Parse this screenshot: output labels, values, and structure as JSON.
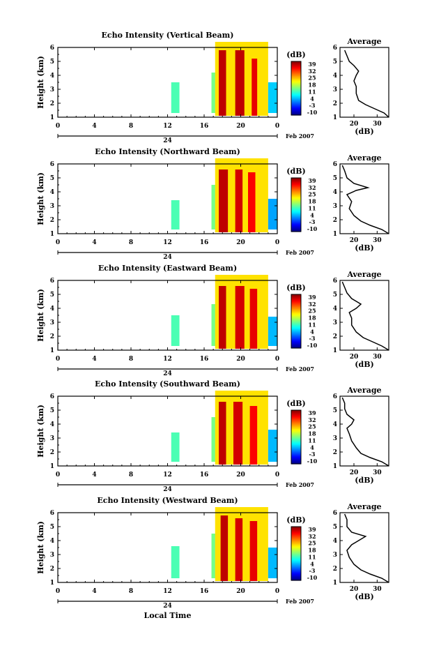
{
  "chart_data": [
    {
      "type": "heatmap",
      "title": "Echo Intensity (Vertical Beam)",
      "ylabel": "Height (km)",
      "xlim": [
        0,
        24
      ],
      "ylim": [
        1,
        6
      ],
      "x_ticks": [
        "0",
        "4",
        "8",
        "12",
        "16",
        "20",
        "0"
      ],
      "y_ticks": [
        "1",
        "2",
        "3",
        "4",
        "5",
        "6"
      ],
      "date_label": "24",
      "month_label": "Feb 2007",
      "colorbar": {
        "label": "(dB)",
        "ticks": [
          "39",
          "32",
          "25",
          "18",
          "11",
          "4",
          "-3",
          "-10"
        ],
        "range": [
          -10,
          39
        ]
      },
      "regions": [
        {
          "t": [
            12.4,
            13.3
          ],
          "h": [
            1.3,
            3.5
          ],
          "dB": 12
        },
        {
          "t": [
            16.8,
            18.2
          ],
          "h": [
            1.3,
            4.2
          ],
          "dB": 14
        },
        {
          "t": [
            17.2,
            23.0
          ],
          "h": [
            1.1,
            6.4
          ],
          "dB": 22
        },
        {
          "t": [
            23.0,
            24.0
          ],
          "h": [
            1.3,
            3.5
          ],
          "dB": 6
        }
      ],
      "bands": [
        {
          "t": [
            17.6,
            18.4
          ],
          "h": [
            1.1,
            5.8
          ],
          "dB": 36
        },
        {
          "t": [
            19.4,
            20.4
          ],
          "h": [
            1.1,
            5.8
          ],
          "dB": 36
        },
        {
          "t": [
            21.2,
            21.8
          ],
          "h": [
            1.1,
            5.2
          ],
          "dB": 34
        }
      ],
      "average": {
        "title": "Average",
        "xlabel": "(dB)",
        "xlim": [
          14,
          35
        ],
        "ylim": [
          1,
          6
        ],
        "x_ticks": [
          "20",
          "30"
        ],
        "y_ticks": [
          "1",
          "2",
          "3",
          "4",
          "5",
          "6"
        ],
        "profile": [
          [
            35,
            1.0
          ],
          [
            33,
            1.3
          ],
          [
            29,
            1.6
          ],
          [
            25,
            1.9
          ],
          [
            22,
            2.2
          ],
          [
            21,
            2.7
          ],
          [
            21,
            3.2
          ],
          [
            20,
            3.6
          ],
          [
            21,
            4.0
          ],
          [
            22,
            4.3
          ],
          [
            20,
            4.7
          ],
          [
            18,
            5.0
          ],
          [
            17,
            5.4
          ],
          [
            16,
            5.8
          ]
        ]
      }
    },
    {
      "type": "heatmap",
      "title": "Echo Intensity (Northward Beam)",
      "ylabel": "Height (km)",
      "xlim": [
        0,
        24
      ],
      "ylim": [
        1,
        6
      ],
      "x_ticks": [
        "0",
        "4",
        "8",
        "12",
        "16",
        "20",
        "0"
      ],
      "y_ticks": [
        "1",
        "2",
        "3",
        "4",
        "5",
        "6"
      ],
      "date_label": "24",
      "month_label": "Feb 2007",
      "colorbar": {
        "label": "(dB)",
        "ticks": [
          "39",
          "32",
          "25",
          "18",
          "11",
          "4",
          "-3",
          "-10"
        ],
        "range": [
          -10,
          39
        ]
      },
      "regions": [
        {
          "t": [
            12.4,
            13.3
          ],
          "h": [
            1.3,
            3.4
          ],
          "dB": 12
        },
        {
          "t": [
            16.8,
            18.2
          ],
          "h": [
            1.3,
            4.5
          ],
          "dB": 14
        },
        {
          "t": [
            17.2,
            23.0
          ],
          "h": [
            1.1,
            6.4
          ],
          "dB": 22
        },
        {
          "t": [
            23.0,
            24.0
          ],
          "h": [
            1.3,
            3.5
          ],
          "dB": 4
        }
      ],
      "bands": [
        {
          "t": [
            17.6,
            18.6
          ],
          "h": [
            1.1,
            5.6
          ],
          "dB": 36
        },
        {
          "t": [
            19.4,
            20.2
          ],
          "h": [
            1.1,
            5.6
          ],
          "dB": 35
        },
        {
          "t": [
            20.8,
            21.6
          ],
          "h": [
            1.1,
            5.4
          ],
          "dB": 33
        }
      ],
      "average": {
        "title": "Average",
        "xlabel": "(dB)",
        "xlim": [
          14,
          35
        ],
        "ylim": [
          1,
          6
        ],
        "x_ticks": [
          "20",
          "30"
        ],
        "y_ticks": [
          "1",
          "2",
          "3",
          "4",
          "5",
          "6"
        ],
        "profile": [
          [
            35,
            1.0
          ],
          [
            32,
            1.3
          ],
          [
            27,
            1.6
          ],
          [
            23,
            1.9
          ],
          [
            20,
            2.3
          ],
          [
            18,
            2.8
          ],
          [
            19,
            3.3
          ],
          [
            17,
            3.8
          ],
          [
            21,
            4.1
          ],
          [
            26,
            4.3
          ],
          [
            20,
            4.6
          ],
          [
            17,
            5.0
          ],
          [
            16,
            5.5
          ],
          [
            15,
            5.9
          ]
        ]
      }
    },
    {
      "type": "heatmap",
      "title": "Echo Intensity (Eastward Beam)",
      "ylabel": "Height (km)",
      "xlim": [
        0,
        24
      ],
      "ylim": [
        1,
        6
      ],
      "x_ticks": [
        "0",
        "4",
        "8",
        "12",
        "16",
        "20",
        "0"
      ],
      "y_ticks": [
        "1",
        "2",
        "3",
        "4",
        "5",
        "6"
      ],
      "date_label": "24",
      "month_label": "Feb 2007",
      "colorbar": {
        "label": "(dB)",
        "ticks": [
          "39",
          "32",
          "25",
          "18",
          "11",
          "4",
          "-3",
          "-10"
        ],
        "range": [
          -10,
          39
        ]
      },
      "regions": [
        {
          "t": [
            12.4,
            13.3
          ],
          "h": [
            1.3,
            3.5
          ],
          "dB": 12
        },
        {
          "t": [
            16.8,
            18.2
          ],
          "h": [
            1.3,
            4.3
          ],
          "dB": 14
        },
        {
          "t": [
            17.2,
            23.0
          ],
          "h": [
            1.1,
            6.4
          ],
          "dB": 22
        },
        {
          "t": [
            23.0,
            24.0
          ],
          "h": [
            1.3,
            3.4
          ],
          "dB": 5
        }
      ],
      "bands": [
        {
          "t": [
            17.6,
            18.4
          ],
          "h": [
            1.1,
            5.6
          ],
          "dB": 36
        },
        {
          "t": [
            19.4,
            20.4
          ],
          "h": [
            1.1,
            5.6
          ],
          "dB": 35
        },
        {
          "t": [
            21.0,
            21.8
          ],
          "h": [
            1.1,
            5.4
          ],
          "dB": 34
        }
      ],
      "average": {
        "title": "Average",
        "xlabel": "(dB)",
        "xlim": [
          14,
          35
        ],
        "ylim": [
          1,
          6
        ],
        "x_ticks": [
          "20",
          "30"
        ],
        "y_ticks": [
          "1",
          "2",
          "3",
          "4",
          "5",
          "6"
        ],
        "profile": [
          [
            35,
            1.0
          ],
          [
            32,
            1.3
          ],
          [
            28,
            1.6
          ],
          [
            24,
            1.9
          ],
          [
            21,
            2.3
          ],
          [
            19,
            2.8
          ],
          [
            19,
            3.3
          ],
          [
            18,
            3.7
          ],
          [
            21,
            4.0
          ],
          [
            23,
            4.3
          ],
          [
            19,
            4.7
          ],
          [
            17,
            5.1
          ],
          [
            16,
            5.5
          ],
          [
            15,
            5.9
          ]
        ]
      }
    },
    {
      "type": "heatmap",
      "title": "Echo Intensity (Southward Beam)",
      "ylabel": "Height (km)",
      "xlim": [
        0,
        24
      ],
      "ylim": [
        1,
        6
      ],
      "x_ticks": [
        "0",
        "4",
        "8",
        "12",
        "16",
        "20",
        "0"
      ],
      "y_ticks": [
        "1",
        "2",
        "3",
        "4",
        "5",
        "6"
      ],
      "date_label": "24",
      "month_label": "Feb 2007",
      "colorbar": {
        "label": "(dB)",
        "ticks": [
          "39",
          "32",
          "25",
          "18",
          "11",
          "4",
          "-3",
          "-10"
        ],
        "range": [
          -10,
          39
        ]
      },
      "regions": [
        {
          "t": [
            12.4,
            13.3
          ],
          "h": [
            1.3,
            3.4
          ],
          "dB": 12
        },
        {
          "t": [
            16.8,
            18.2
          ],
          "h": [
            1.3,
            4.5
          ],
          "dB": 14
        },
        {
          "t": [
            17.2,
            23.0
          ],
          "h": [
            1.1,
            6.4
          ],
          "dB": 22
        },
        {
          "t": [
            23.0,
            24.0
          ],
          "h": [
            1.3,
            3.6
          ],
          "dB": 5
        }
      ],
      "bands": [
        {
          "t": [
            17.6,
            18.4
          ],
          "h": [
            1.1,
            5.6
          ],
          "dB": 36
        },
        {
          "t": [
            19.2,
            20.2
          ],
          "h": [
            1.1,
            5.6
          ],
          "dB": 35
        },
        {
          "t": [
            21.0,
            21.8
          ],
          "h": [
            1.1,
            5.3
          ],
          "dB": 33
        }
      ],
      "average": {
        "title": "Average",
        "xlabel": "(dB)",
        "xlim": [
          14,
          35
        ],
        "ylim": [
          1,
          6
        ],
        "x_ticks": [
          "20",
          "30"
        ],
        "y_ticks": [
          "1",
          "2",
          "3",
          "4",
          "5",
          "6"
        ],
        "profile": [
          [
            35,
            1.0
          ],
          [
            32,
            1.3
          ],
          [
            27,
            1.6
          ],
          [
            23,
            1.9
          ],
          [
            21,
            2.3
          ],
          [
            19,
            2.8
          ],
          [
            18,
            3.3
          ],
          [
            17,
            3.7
          ],
          [
            19,
            4.0
          ],
          [
            20,
            4.3
          ],
          [
            17,
            4.7
          ],
          [
            16,
            5.1
          ],
          [
            16,
            5.5
          ],
          [
            15,
            5.9
          ]
        ]
      }
    },
    {
      "type": "heatmap",
      "title": "Echo Intensity (Westward Beam)",
      "ylabel": "Height (km)",
      "xlabel": "Local Time",
      "xlim": [
        0,
        24
      ],
      "ylim": [
        1,
        6
      ],
      "x_ticks": [
        "0",
        "4",
        "8",
        "12",
        "16",
        "20",
        "0"
      ],
      "y_ticks": [
        "1",
        "2",
        "3",
        "4",
        "5",
        "6"
      ],
      "date_label": "24",
      "month_label": "Feb 2007",
      "colorbar": {
        "label": "(dB)",
        "ticks": [
          "39",
          "32",
          "25",
          "18",
          "11",
          "4",
          "-3",
          "-10"
        ],
        "range": [
          -10,
          39
        ]
      },
      "regions": [
        {
          "t": [
            12.4,
            13.3
          ],
          "h": [
            1.3,
            3.6
          ],
          "dB": 12
        },
        {
          "t": [
            16.8,
            18.2
          ],
          "h": [
            1.3,
            4.5
          ],
          "dB": 14
        },
        {
          "t": [
            17.2,
            23.0
          ],
          "h": [
            1.1,
            6.4
          ],
          "dB": 22
        },
        {
          "t": [
            23.0,
            24.0
          ],
          "h": [
            1.3,
            3.5
          ],
          "dB": 5
        }
      ],
      "bands": [
        {
          "t": [
            17.8,
            18.6
          ],
          "h": [
            1.1,
            5.8
          ],
          "dB": 36
        },
        {
          "t": [
            19.4,
            20.2
          ],
          "h": [
            1.1,
            5.6
          ],
          "dB": 35
        },
        {
          "t": [
            21.0,
            21.8
          ],
          "h": [
            1.1,
            5.4
          ],
          "dB": 34
        }
      ],
      "average": {
        "title": "Average",
        "xlabel": "(dB)",
        "xlim": [
          14,
          35
        ],
        "ylim": [
          1,
          6
        ],
        "x_ticks": [
          "20",
          "30"
        ],
        "y_ticks": [
          "1",
          "2",
          "3",
          "4",
          "5",
          "6"
        ],
        "profile": [
          [
            35,
            1.0
          ],
          [
            32,
            1.3
          ],
          [
            27,
            1.6
          ],
          [
            23,
            1.9
          ],
          [
            20,
            2.3
          ],
          [
            18,
            2.8
          ],
          [
            17,
            3.3
          ],
          [
            19,
            3.7
          ],
          [
            22,
            4.0
          ],
          [
            25,
            4.3
          ],
          [
            19,
            4.6
          ],
          [
            17,
            5.0
          ],
          [
            17,
            5.5
          ],
          [
            16,
            5.9
          ]
        ]
      }
    }
  ]
}
